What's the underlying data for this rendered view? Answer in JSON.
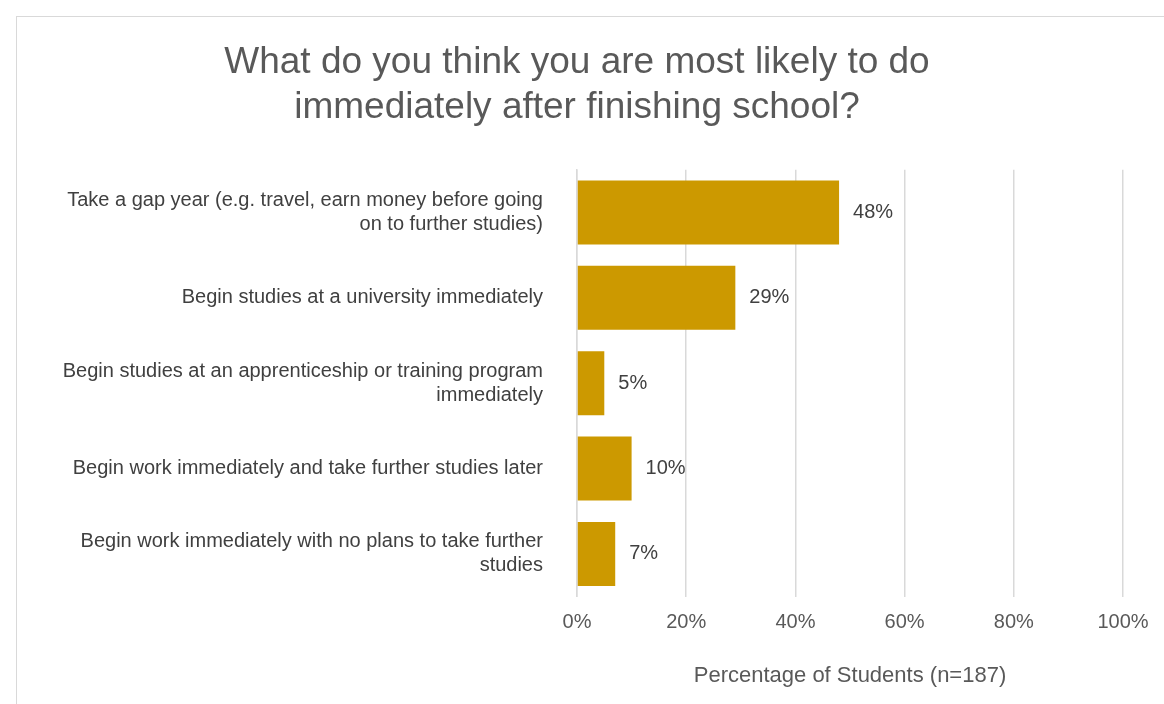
{
  "chart_data": {
    "type": "bar",
    "orientation": "horizontal",
    "title": "What do you think you are most likely to do immediately after finishing school?",
    "xlabel": "Percentage of Students (n=187)",
    "categories": [
      "Take a gap year (e.g. travel, earn money before going on to further studies)",
      "Begin studies at a university immediately",
      "Begin studies at an apprenticeship or training program immediately",
      "Begin work immediately and take further studies later",
      "Begin work immediately with no plans to take further studies"
    ],
    "values": [
      48,
      29,
      5,
      10,
      7
    ],
    "value_labels": [
      "48%",
      "29%",
      "5%",
      "10%",
      "7%"
    ],
    "color": "#cc9900",
    "xlim": [
      0,
      100
    ],
    "xticks": [
      {
        "value": 0,
        "label": "0%"
      },
      {
        "value": 20,
        "label": "20%"
      },
      {
        "value": 40,
        "label": "40%"
      },
      {
        "value": 60,
        "label": "60%"
      },
      {
        "value": 80,
        "label": "80%"
      },
      {
        "value": 100,
        "label": "100%"
      }
    ],
    "grid": "x",
    "legend": false
  }
}
